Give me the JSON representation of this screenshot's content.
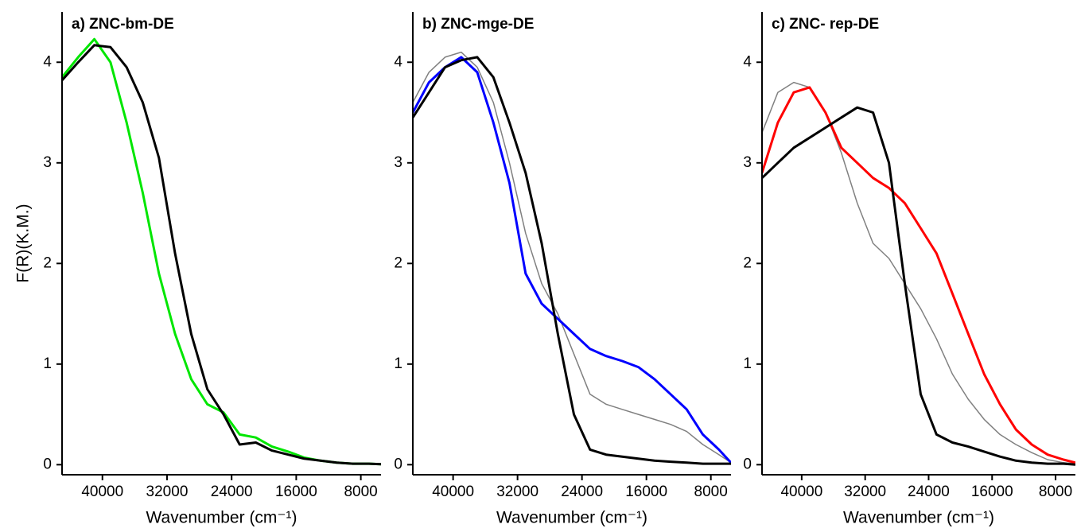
{
  "chart_data": [
    {
      "type": "line",
      "title": "a) ZNC-bm-DE",
      "x_label": "Wavenumber (cm⁻¹)",
      "y_label": "F(R)(K.M.)",
      "x": [
        45000,
        43000,
        41000,
        39000,
        37000,
        35000,
        33000,
        31000,
        29000,
        27000,
        25000,
        23000,
        21000,
        19000,
        17000,
        15000,
        13000,
        11000,
        9000,
        7000,
        5500
      ],
      "series": [
        {
          "color": "#00e600",
          "linewidth": 3,
          "values": [
            3.85,
            4.05,
            4.23,
            4.0,
            3.4,
            2.7,
            1.9,
            1.3,
            0.85,
            0.6,
            0.52,
            0.3,
            0.27,
            0.18,
            0.13,
            0.07,
            0.04,
            0.02,
            0.01,
            0.01,
            0.005
          ]
        },
        {
          "color": "#000000",
          "linewidth": 3,
          "values": [
            3.82,
            4.0,
            4.17,
            4.15,
            3.95,
            3.6,
            3.05,
            2.1,
            1.3,
            0.75,
            0.5,
            0.2,
            0.22,
            0.14,
            0.1,
            0.06,
            0.04,
            0.02,
            0.01,
            0.01,
            0.005
          ]
        }
      ],
      "xlim": [
        45000,
        5500
      ],
      "ylim": [
        -0.1,
        4.5
      ],
      "xticks": [
        40000,
        32000,
        24000,
        16000,
        8000
      ],
      "yticks": [
        0,
        1,
        2,
        3,
        4
      ]
    },
    {
      "type": "line",
      "title": "b) ZNC-mge-DE",
      "x_label": "Wavenumber (cm⁻¹)",
      "x": [
        45000,
        43000,
        41000,
        39000,
        37000,
        35000,
        33000,
        31000,
        29000,
        27000,
        25000,
        23000,
        21000,
        19000,
        17000,
        15000,
        13000,
        11000,
        9000,
        7000,
        5500
      ],
      "series": [
        {
          "color": "#808080",
          "linewidth": 1.5,
          "values": [
            3.6,
            3.9,
            4.05,
            4.1,
            3.95,
            3.6,
            3.0,
            2.3,
            1.8,
            1.5,
            1.1,
            0.7,
            0.6,
            0.55,
            0.5,
            0.45,
            0.4,
            0.33,
            0.2,
            0.1,
            0.02
          ]
        },
        {
          "color": "#0000ff",
          "linewidth": 3,
          "values": [
            3.5,
            3.8,
            3.95,
            4.05,
            3.9,
            3.4,
            2.8,
            1.9,
            1.6,
            1.45,
            1.3,
            1.15,
            1.08,
            1.03,
            0.97,
            0.85,
            0.7,
            0.55,
            0.3,
            0.15,
            0.02
          ]
        },
        {
          "color": "#000000",
          "linewidth": 3,
          "values": [
            3.45,
            3.7,
            3.95,
            4.02,
            4.05,
            3.85,
            3.4,
            2.9,
            2.2,
            1.3,
            0.5,
            0.15,
            0.1,
            0.08,
            0.06,
            0.04,
            0.03,
            0.02,
            0.01,
            0.01,
            0.01
          ]
        }
      ],
      "xlim": [
        45000,
        5500
      ],
      "ylim": [
        -0.1,
        4.5
      ],
      "xticks": [
        40000,
        32000,
        24000,
        16000,
        8000
      ],
      "yticks": [
        0,
        1,
        2,
        3,
        4
      ]
    },
    {
      "type": "line",
      "title": "c) ZNC- rep-DE",
      "x_label": "Wavenumber (cm⁻¹)",
      "x": [
        45000,
        43000,
        41000,
        39000,
        37000,
        35000,
        33000,
        31000,
        29000,
        27000,
        25000,
        23000,
        21000,
        19000,
        17000,
        15000,
        13000,
        11000,
        9000,
        7000,
        5500
      ],
      "series": [
        {
          "color": "#808080",
          "linewidth": 1.5,
          "values": [
            3.3,
            3.7,
            3.8,
            3.75,
            3.5,
            3.1,
            2.6,
            2.2,
            2.05,
            1.8,
            1.55,
            1.25,
            0.9,
            0.65,
            0.45,
            0.3,
            0.2,
            0.12,
            0.05,
            0.02,
            0.01
          ]
        },
        {
          "color": "#ff0000",
          "linewidth": 3,
          "values": [
            2.9,
            3.4,
            3.7,
            3.75,
            3.5,
            3.15,
            3.0,
            2.85,
            2.75,
            2.6,
            2.35,
            2.1,
            1.7,
            1.3,
            0.9,
            0.6,
            0.35,
            0.2,
            0.1,
            0.05,
            0.02
          ]
        },
        {
          "color": "#000000",
          "linewidth": 3,
          "values": [
            2.85,
            3.0,
            3.15,
            3.25,
            3.35,
            3.45,
            3.55,
            3.5,
            3.0,
            1.8,
            0.7,
            0.3,
            0.22,
            0.18,
            0.13,
            0.08,
            0.04,
            0.02,
            0.01,
            0.01,
            0.0
          ]
        }
      ],
      "xlim": [
        45000,
        5500
      ],
      "ylim": [
        -0.1,
        4.5
      ],
      "xticks": [
        40000,
        32000,
        24000,
        16000,
        8000
      ],
      "yticks": [
        0,
        1,
        2,
        3,
        4
      ]
    }
  ]
}
